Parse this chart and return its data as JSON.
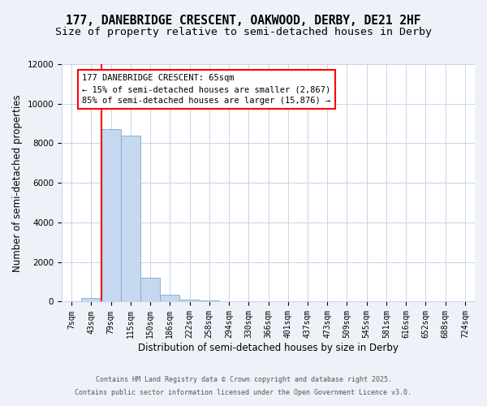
{
  "title": "177, DANEBRIDGE CRESCENT, OAKWOOD, DERBY, DE21 2HF",
  "subtitle": "Size of property relative to semi-detached houses in Derby",
  "xlabel": "Distribution of semi-detached houses by size in Derby",
  "ylabel": "Number of semi-detached properties",
  "categories": [
    "7sqm",
    "43sqm",
    "79sqm",
    "115sqm",
    "150sqm",
    "186sqm",
    "222sqm",
    "258sqm",
    "294sqm",
    "330sqm",
    "366sqm",
    "401sqm",
    "437sqm",
    "473sqm",
    "509sqm",
    "545sqm",
    "581sqm",
    "616sqm",
    "652sqm",
    "688sqm",
    "724sqm"
  ],
  "values": [
    0,
    200,
    8700,
    8400,
    1200,
    330,
    100,
    80,
    0,
    0,
    0,
    0,
    0,
    0,
    0,
    0,
    0,
    0,
    0,
    0,
    0
  ],
  "bar_color": "#c5d8f0",
  "bar_edgecolor": "#7aaad0",
  "red_line_index": 2,
  "annotation_line1": "177 DANEBRIDGE CRESCENT: 65sqm",
  "annotation_line2": "← 15% of semi-detached houses are smaller (2,867)",
  "annotation_line3": "85% of semi-detached houses are larger (15,876) →",
  "ylim": [
    0,
    12000
  ],
  "yticks": [
    0,
    2000,
    4000,
    6000,
    8000,
    10000,
    12000
  ],
  "footer1": "Contains HM Land Registry data © Crown copyright and database right 2025.",
  "footer2": "Contains public sector information licensed under the Open Government Licence v3.0.",
  "bg_color": "#eef2f8",
  "plot_bg": "#ffffff",
  "title_fontsize": 10.5,
  "subtitle_fontsize": 9.5,
  "tick_fontsize": 7,
  "ylabel_fontsize": 8.5,
  "xlabel_fontsize": 8.5,
  "annotation_fontsize": 7.5,
  "footer_fontsize": 6.0
}
